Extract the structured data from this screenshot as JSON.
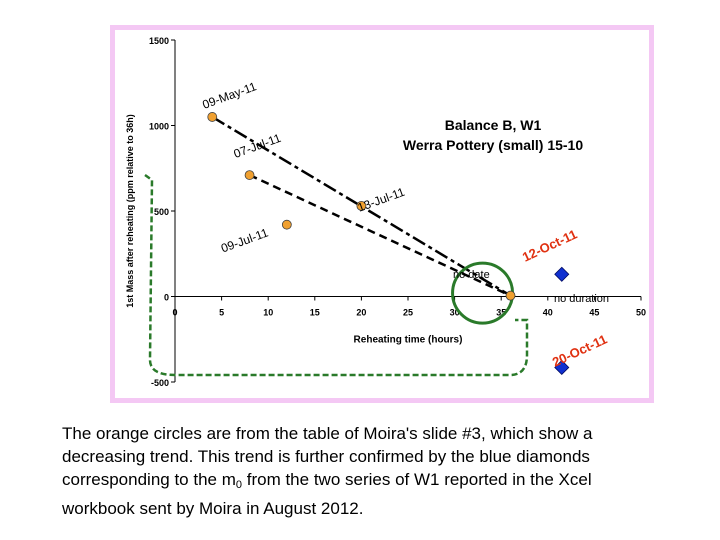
{
  "chart_data": {
    "type": "scatter",
    "title_line1": "Balance B, W1",
    "title_line2": "Werra Pottery (small) 15-10",
    "xlabel": "Reheating time (hours)",
    "ylabel": "1st Mass after reheating (ppm relative to 36h)",
    "xlim": [
      0,
      50
    ],
    "ylim": [
      -500,
      1500
    ],
    "x_ticks": [
      "0",
      "5",
      "10",
      "15",
      "20",
      "25",
      "30",
      "35",
      "40",
      "45",
      "50"
    ],
    "y_ticks": [
      "1500",
      "1000",
      "500",
      "0",
      "-500"
    ],
    "series": [
      {
        "marker": "orange-circle",
        "color": "#f0a030",
        "points": [
          {
            "x": 4,
            "y": 1050,
            "label": "09-May-11"
          },
          {
            "x": 8,
            "y": 710,
            "label": "07-Jul-11"
          },
          {
            "x": 20,
            "y": 530,
            "label": "13-Jul-11"
          },
          {
            "x": 12,
            "y": 420,
            "label": "09-Jul-11"
          },
          {
            "x": 36,
            "y": 5,
            "label": ""
          }
        ]
      },
      {
        "marker": "blue-diamond",
        "color": "#1030d0",
        "points": [
          {
            "x": 41.5,
            "y": 130,
            "label": "12-Oct-11"
          },
          {
            "x": 41.5,
            "y": -415,
            "label": "20-Oct-11"
          }
        ]
      }
    ],
    "annotations": {
      "no_date": "no date",
      "no_duration": "no duration"
    }
  },
  "caption": {
    "part1": "The orange circles are from the table of Moira's slide #3, which show a decreasing trend. This trend is further confirmed by the blue diamonds corresponding to the m",
    "sub": "0",
    "part2": " from the two series of W1 reported in the Xcel workbook sent by Moira in August 2012."
  },
  "colors": {
    "frame": "#f4c8f4",
    "trend": "#000000",
    "guide": "#2a7a2a"
  }
}
